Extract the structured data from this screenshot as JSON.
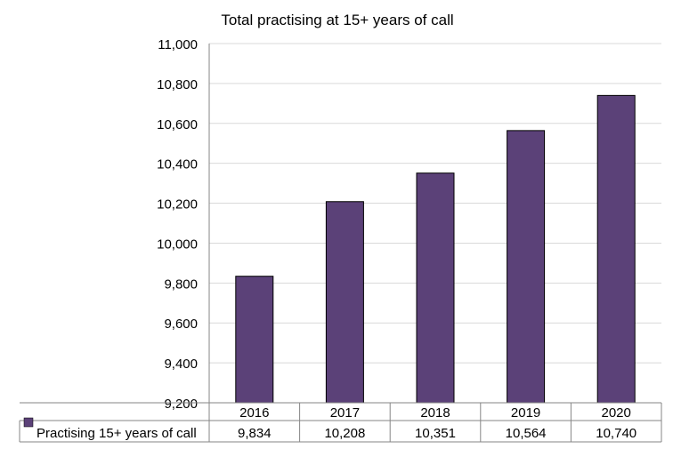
{
  "chart_data": {
    "type": "bar",
    "title": "Total practising at 15+ years of call",
    "xlabel": "",
    "ylabel": "",
    "categories": [
      "2016",
      "2017",
      "2018",
      "2019",
      "2020"
    ],
    "series": [
      {
        "name": "Practising 15+ years of call",
        "values": [
          9834,
          10208,
          10351,
          10564,
          10740
        ],
        "labels": [
          "9,834",
          "10,208",
          "10,351",
          "10,564",
          "10,740"
        ],
        "color": "#5b4178"
      }
    ],
    "ylim": [
      9200,
      11000
    ],
    "yticks": [
      9200,
      9400,
      9600,
      9800,
      10000,
      10200,
      10400,
      10600,
      10800,
      11000
    ],
    "ytick_labels": [
      "9,200",
      "9,400",
      "9,600",
      "9,800",
      "10,000",
      "10,200",
      "10,400",
      "10,600",
      "10,800",
      "11,000"
    ],
    "grid": true,
    "legend": "data table",
    "data_table": true
  }
}
